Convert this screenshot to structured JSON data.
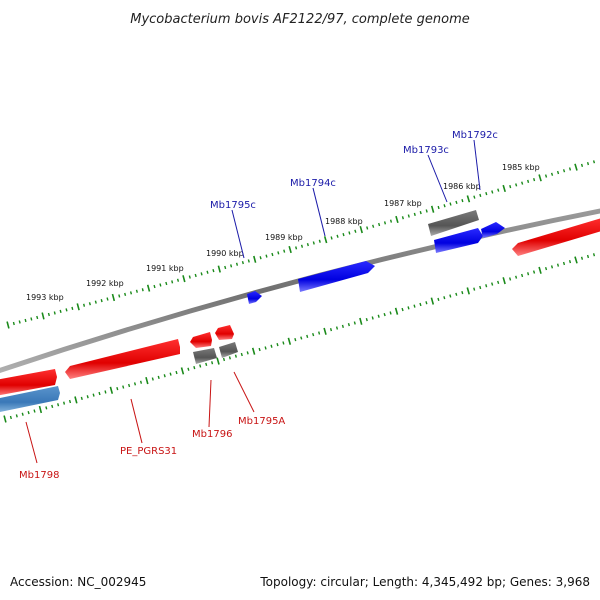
{
  "title": "Mycobacterium bovis AF2122/97, complete genome",
  "footer": {
    "accession": "Accession: NC_002945",
    "summary": "Topology: circular; Length: 4,345,492 bp; Genes: 3,968"
  },
  "scale": {
    "ticks": [
      {
        "label": "1993 kbp"
      },
      {
        "label": "1992 kbp"
      },
      {
        "label": "1991 kbp"
      },
      {
        "label": "1990 kbp"
      },
      {
        "label": "1989 kbp"
      },
      {
        "label": "1988 kbp"
      },
      {
        "label": "1987 kbp"
      },
      {
        "label": "1986 kbp"
      },
      {
        "label": "1985 kbp"
      }
    ]
  },
  "genes": {
    "top": [
      {
        "label": "Mb1795c"
      },
      {
        "label": "Mb1794c"
      },
      {
        "label": "Mb1793c"
      },
      {
        "label": "Mb1792c"
      }
    ],
    "bottom": [
      {
        "label": "Mb1798"
      },
      {
        "label": "PE_PGRS31"
      },
      {
        "label": "Mb1796"
      },
      {
        "label": "Mb1795A"
      }
    ]
  },
  "colors": {
    "forward": "#e00000",
    "reverse": "#0000e0",
    "other": "#606060",
    "steel": "#3a78b8",
    "tick": "#1a8a1a",
    "backbone": "#808080",
    "blue_label": "#1a1aa8",
    "red_label": "#c81414"
  }
}
